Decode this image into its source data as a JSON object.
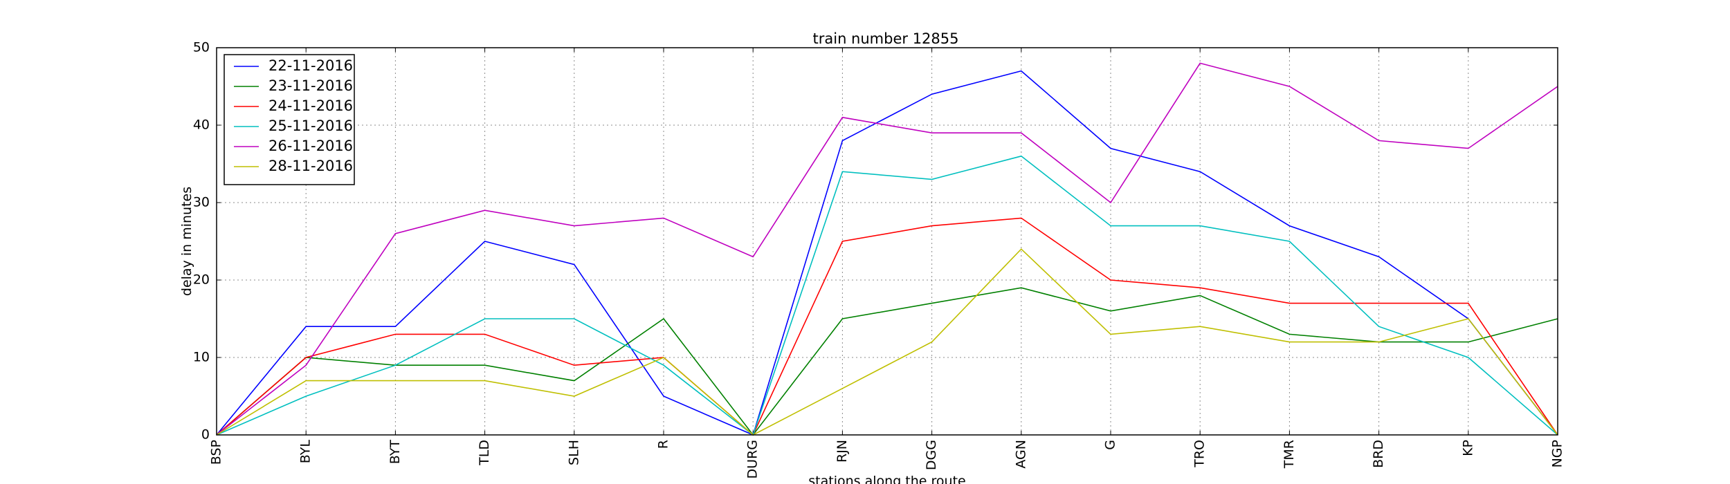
{
  "chart_data": {
    "type": "line",
    "title": "train number 12855",
    "xlabel": "stations along the route",
    "ylabel": "delay in minutes",
    "categories": [
      "BSP",
      "BYL",
      "BYT",
      "TLD",
      "SLH",
      "R",
      "DURG",
      "RJN",
      "DGG",
      "AGN",
      "G",
      "TRO",
      "TMR",
      "BRD",
      "KP",
      "NGP"
    ],
    "ylim": [
      0,
      50
    ],
    "yticks": [
      0,
      10,
      20,
      30,
      40,
      50
    ],
    "grid": true,
    "legend_position": "top-left",
    "series": [
      {
        "name": "22-11-2016",
        "color": "#0000ff",
        "values": [
          0,
          14,
          14,
          25,
          22,
          5,
          0,
          38,
          44,
          47,
          37,
          34,
          27,
          23,
          15,
          0
        ]
      },
      {
        "name": "23-11-2016",
        "color": "#008000",
        "values": [
          0,
          10,
          9,
          9,
          7,
          15,
          0,
          15,
          17,
          19,
          16,
          18,
          13,
          12,
          12,
          15
        ]
      },
      {
        "name": "24-11-2016",
        "color": "#ff0000",
        "values": [
          0,
          10,
          13,
          13,
          9,
          10,
          0,
          25,
          27,
          28,
          20,
          19,
          17,
          17,
          17,
          0
        ]
      },
      {
        "name": "25-11-2016",
        "color": "#00bfbf",
        "values": [
          0,
          5,
          9,
          15,
          15,
          9,
          0,
          34,
          33,
          36,
          27,
          27,
          25,
          14,
          10,
          0
        ]
      },
      {
        "name": "26-11-2016",
        "color": "#bf00bf",
        "values": [
          0,
          9,
          26,
          29,
          27,
          28,
          23,
          41,
          39,
          39,
          30,
          48,
          45,
          38,
          37,
          45
        ]
      },
      {
        "name": "28-11-2016",
        "color": "#bfbf00",
        "values": [
          0,
          7,
          7,
          7,
          5,
          10,
          0,
          6,
          12,
          24,
          13,
          14,
          12,
          12,
          15,
          0
        ]
      }
    ]
  }
}
